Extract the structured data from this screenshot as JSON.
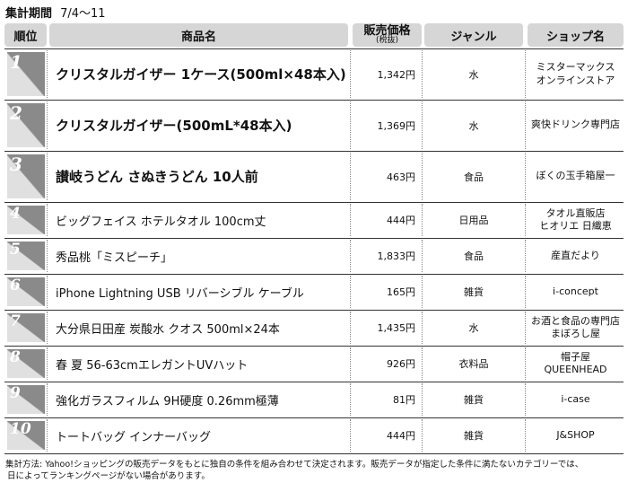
{
  "header": {
    "label": "集計期間",
    "period": "7/4〜11"
  },
  "table": {
    "columns": [
      "順位",
      "商品名",
      "販売価格",
      "(税抜)",
      "ジャンル",
      "ショップ名"
    ],
    "rows": [
      {
        "rank": "1",
        "name": "クリスタルガイザー 1ケース(500ml×48本入)",
        "price": "1,342円",
        "genre": "水",
        "shop": [
          "ミスターマックス",
          "オンラインストア"
        ]
      },
      {
        "rank": "2",
        "name": "クリスタルガイザー(500mL*48本入)",
        "price": "1,369円",
        "genre": "水",
        "shop": [
          "爽快ドリンク専門店"
        ]
      },
      {
        "rank": "3",
        "name": "讃岐うどん さぬきうどん 10人前",
        "price": "463円",
        "genre": "食品",
        "shop": [
          "ぼくの玉手箱屋一"
        ]
      },
      {
        "rank": "4",
        "name": "ビッグフェイス ホテルタオル 100cm丈",
        "price": "444円",
        "genre": "日用品",
        "shop": [
          "タオル直販店",
          "ヒオリエ 日織恵"
        ]
      },
      {
        "rank": "5",
        "name": "秀品桃「ミスピーチ」",
        "price": "1,833円",
        "genre": "食品",
        "shop": [
          "産直だより"
        ]
      },
      {
        "rank": "6",
        "name": "iPhone Lightning USB リバーシブル ケーブル",
        "price": "165円",
        "genre": "雑貨",
        "shop": [
          "i-concept"
        ]
      },
      {
        "rank": "7",
        "name": "大分県日田産 炭酸水 クオス 500ml×24本",
        "price": "1,435円",
        "genre": "水",
        "shop": [
          "お酒と食品の専門店",
          "まぼろし屋"
        ]
      },
      {
        "rank": "8",
        "name": "春 夏 56-63cmエレガントUVハット",
        "price": "926円",
        "genre": "衣料品",
        "shop": [
          "帽子屋",
          "QUEENHEAD"
        ]
      },
      {
        "rank": "9",
        "name": "強化ガラスフィルム 9H硬度 0.26mm極薄",
        "price": "81円",
        "genre": "雑貨",
        "shop": [
          "i-case"
        ]
      },
      {
        "rank": "10",
        "name": "トートバッグ インナーバッグ",
        "price": "444円",
        "genre": "雑貨",
        "shop": [
          "J&SHOP"
        ]
      }
    ]
  },
  "footer": [
    "集計方法: Yahoo!ショッピングの販売データをもとに独自の条件を組み合わせて決定されます。販売データが指定した条件に満たないカテゴリーでは、",
    "日によってランキングページがない場合があります。"
  ]
}
